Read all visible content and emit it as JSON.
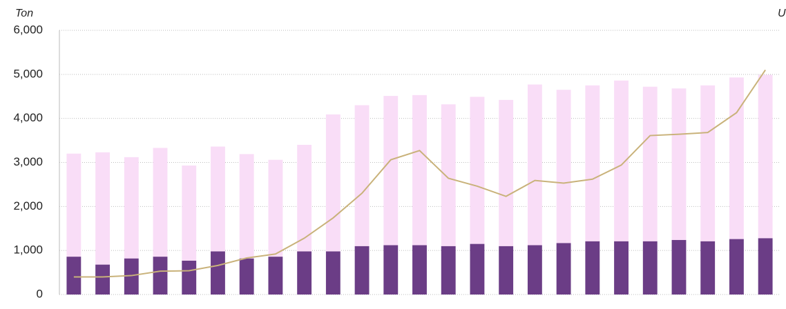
{
  "chart_data": {
    "type": "bar",
    "stacked": true,
    "y_label": "Ton",
    "y2_label": "U",
    "categories": [
      null,
      null,
      null,
      null,
      null,
      null,
      null,
      null,
      null,
      null,
      null,
      null,
      null,
      null,
      null,
      null,
      null,
      null,
      null,
      null,
      null,
      null,
      null,
      null,
      null
    ],
    "series": [
      {
        "type": "bar",
        "color": "#6b3d86",
        "values": [
          860,
          680,
          820,
          860,
          770,
          980,
          820,
          860,
          980,
          980,
          1100,
          1120,
          1120,
          1100,
          1150,
          1100,
          1120,
          1170,
          1210,
          1210,
          1210,
          1240,
          1210,
          1260,
          1280
        ]
      },
      {
        "type": "bar",
        "color": "#f9ddf7",
        "values": [
          2340,
          2550,
          2300,
          2470,
          2160,
          2380,
          2370,
          2200,
          2420,
          3110,
          3200,
          3390,
          3410,
          3220,
          3340,
          3320,
          3650,
          3480,
          3540,
          3650,
          3510,
          3440,
          3540,
          3670,
          3710
        ]
      },
      {
        "type": "line",
        "color": "#c9b27a",
        "values": [
          400,
          400,
          430,
          530,
          540,
          660,
          830,
          920,
          1280,
          1740,
          2300,
          3060,
          3270,
          2640,
          2460,
          2230,
          2590,
          2530,
          2620,
          2940,
          3610,
          3640,
          3680,
          4130,
          5100
        ]
      }
    ],
    "ylim": [
      0,
      6000
    ],
    "yticks": [
      0,
      {
        "value": 1000,
        "label": "1,000"
      },
      {
        "value": 2000,
        "label": "2,000"
      },
      {
        "value": 3000,
        "label": "3,000"
      },
      {
        "value": 4000,
        "label": "4,000"
      },
      {
        "value": 5000,
        "label": "5,000"
      },
      {
        "value": 6000,
        "label": "6,000"
      }
    ],
    "grid": true
  }
}
